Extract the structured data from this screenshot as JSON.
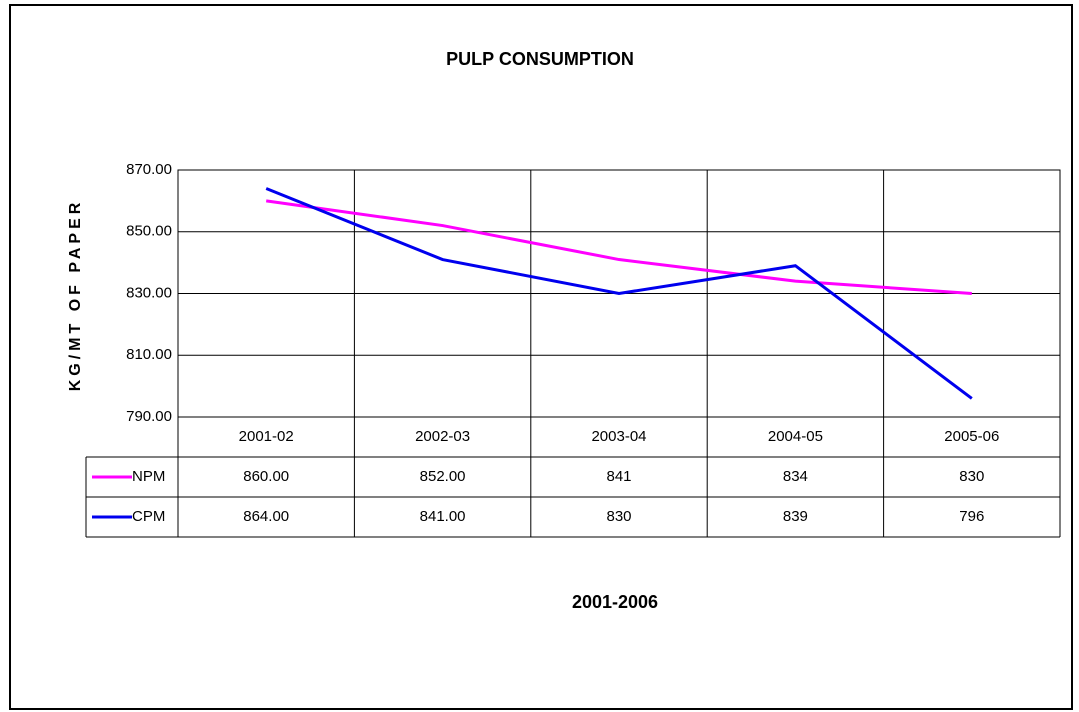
{
  "chart_data": {
    "type": "line",
    "title": "PULP CONSUMPTION",
    "x_label": "2001-2006",
    "y_label": "KG/MT OF PAPER",
    "categories": [
      "2001-02",
      "2002-03",
      "2003-04",
      "2004-05",
      "2005-06"
    ],
    "series": [
      {
        "name": "NPM",
        "color": "#ff00ff",
        "values": [
          860,
          852,
          841,
          834,
          830
        ],
        "value_labels": [
          "860.00",
          "852.00",
          "841",
          "834",
          "830"
        ]
      },
      {
        "name": "CPM",
        "color": "#0000ee",
        "values": [
          864,
          841,
          830,
          839,
          796
        ],
        "value_labels": [
          "864.00",
          "841.00",
          "830",
          "839",
          "796"
        ]
      }
    ],
    "ylim": [
      790,
      870
    ],
    "yticks": [
      {
        "value": 790,
        "label": "790.00"
      },
      {
        "value": 810,
        "label": "810.00"
      },
      {
        "value": 830,
        "label": "830.00"
      },
      {
        "value": 850,
        "label": "850.00"
      },
      {
        "value": 870,
        "label": "870.00"
      }
    ],
    "grid": true
  }
}
